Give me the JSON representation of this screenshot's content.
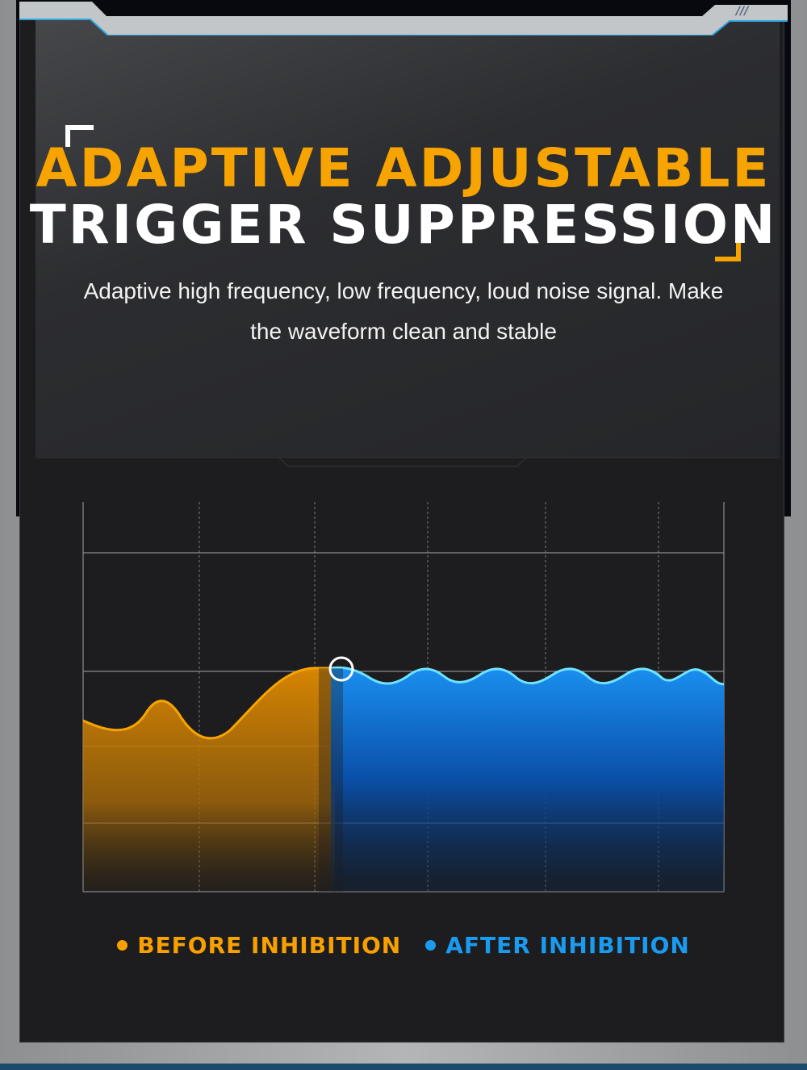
{
  "title": {
    "line1": "ADAPTIVE ADJUSTABLE",
    "line2": "TRIGGER SUPPRESSION"
  },
  "subtitle": "Adaptive high frequency, low frequency, loud noise signal. Make the waveform clean and stable",
  "legend": [
    {
      "label": "BEFORE INHIBITION",
      "color": "#f7a000"
    },
    {
      "label": "AFTER INHIBITION",
      "color": "#1a9bf0"
    }
  ],
  "colors": {
    "accent_orange": "#f7a400",
    "accent_blue": "#1a9bf0",
    "panel": "#1d1d1f"
  }
}
